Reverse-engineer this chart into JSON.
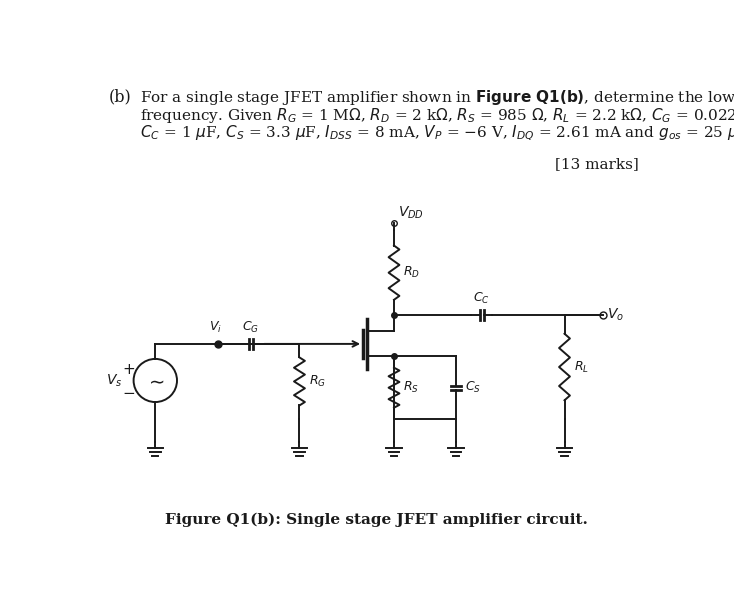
{
  "bg_color": "#ffffff",
  "text_color": "#1a1a1a",
  "line_color": "#1a1a1a",
  "fig_width": 7.34,
  "fig_height": 6.04,
  "caption": "Figure Q1(b): Single stage JFET amplifier circuit."
}
